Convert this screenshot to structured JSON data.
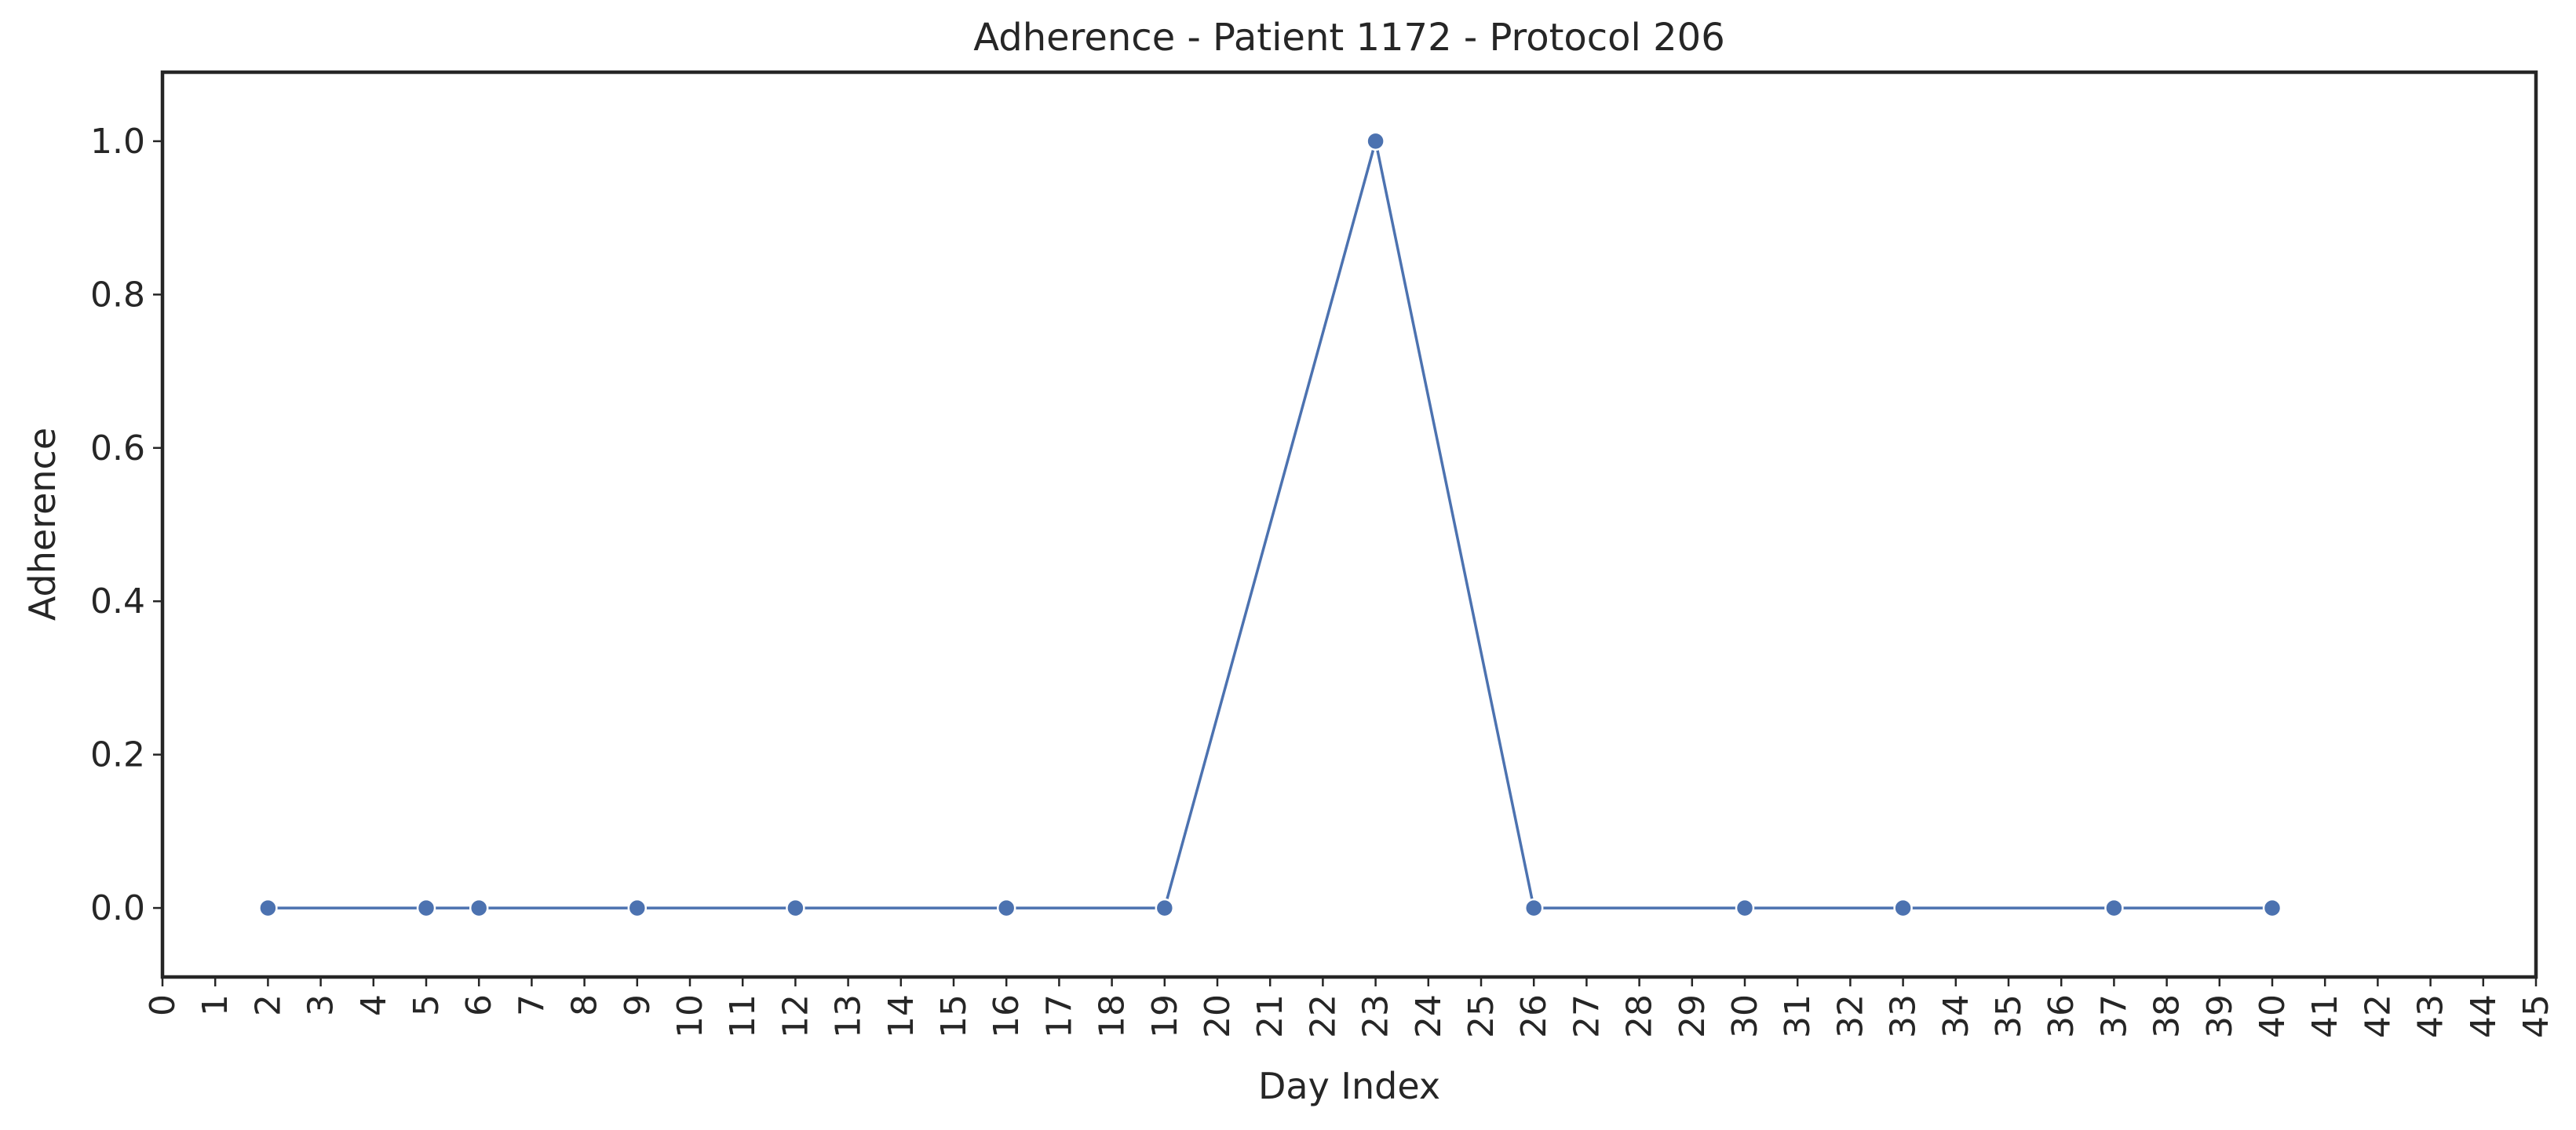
{
  "chart_data": {
    "type": "line",
    "title": "Adherence - Patient 1172 - Protocol 206",
    "xlabel": "Day Index",
    "ylabel": "Adherence",
    "xlim": [
      0,
      45
    ],
    "ylim": [
      -0.09,
      1.09
    ],
    "xticks": [
      0,
      1,
      2,
      3,
      4,
      5,
      6,
      7,
      8,
      9,
      10,
      11,
      12,
      13,
      14,
      15,
      16,
      17,
      18,
      19,
      20,
      21,
      22,
      23,
      24,
      25,
      26,
      27,
      28,
      29,
      30,
      31,
      32,
      33,
      34,
      35,
      36,
      37,
      38,
      39,
      40,
      41,
      42,
      43,
      44,
      45
    ],
    "yticks": [
      0.0,
      0.2,
      0.4,
      0.6,
      0.8,
      1.0
    ],
    "ytick_labels": [
      "0.0",
      "0.2",
      "0.4",
      "0.6",
      "0.8",
      "1.0"
    ],
    "grid": false,
    "series": [
      {
        "color": "#4c72b0",
        "marker": "circle",
        "x": [
          2,
          5,
          6,
          9,
          12,
          16,
          19,
          23,
          26,
          30,
          33,
          37,
          40
        ],
        "y": [
          0.0,
          0.0,
          0.0,
          0.0,
          0.0,
          0.0,
          0.0,
          1.0,
          0.0,
          0.0,
          0.0,
          0.0,
          0.0
        ]
      }
    ]
  }
}
